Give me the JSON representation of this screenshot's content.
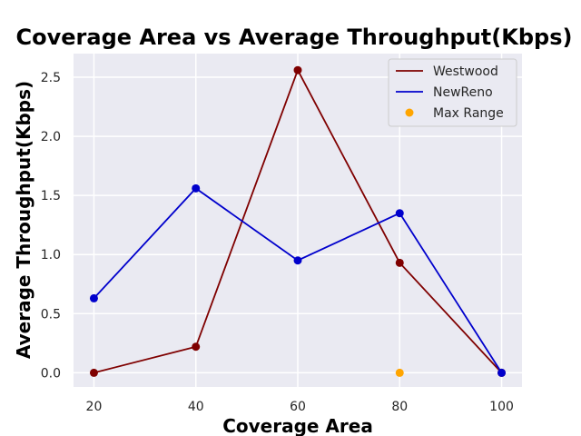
{
  "chart_data": {
    "type": "line",
    "title": "Coverage Area vs Average Throughput(Kbps)",
    "xlabel": "Coverage Area",
    "ylabel": "Average Throughput(Kbps)",
    "x": [
      20,
      40,
      60,
      80,
      100
    ],
    "xticks": [
      "20",
      "40",
      "60",
      "80",
      "100"
    ],
    "yticks": [
      "0.0",
      "0.5",
      "1.0",
      "1.5",
      "2.0",
      "2.5"
    ],
    "xlim": [
      16,
      104
    ],
    "ylim": [
      -0.12,
      2.7
    ],
    "grid": true,
    "legend_position": "top-right",
    "series": [
      {
        "name": "Westwood",
        "color": "#7f0000",
        "marker": "circle",
        "values": [
          0.0,
          0.22,
          2.56,
          0.93,
          0.0
        ]
      },
      {
        "name": "NewReno",
        "color": "#0000cc",
        "marker": "circle",
        "values": [
          0.63,
          1.56,
          0.95,
          1.35,
          0.0
        ]
      }
    ],
    "points": [
      {
        "name": "Max Range",
        "color": "#ffa500",
        "x": 80,
        "y": 0.0
      }
    ]
  }
}
